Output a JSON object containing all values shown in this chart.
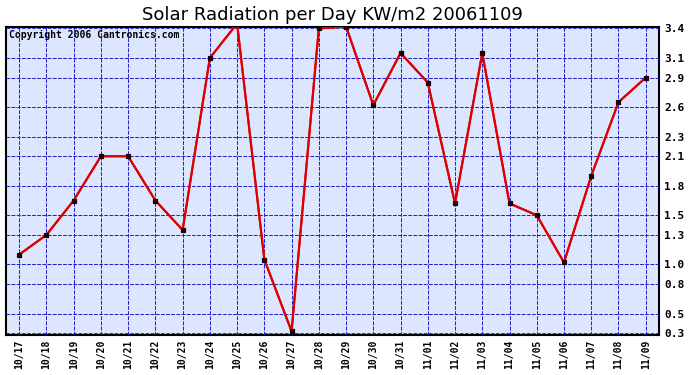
{
  "title": "Solar Radiation per Day KW/m2 20061109",
  "copyright": "Copyright 2006 Cantronics.com",
  "x_labels": [
    "10/17",
    "10/18",
    "10/19",
    "10/20",
    "10/21",
    "10/22",
    "10/23",
    "10/24",
    "10/25",
    "10/26",
    "10/27",
    "10/28",
    "10/29",
    "10/30",
    "10/31",
    "11/01",
    "11/02",
    "11/03",
    "11/04",
    "11/05",
    "11/06",
    "11/07",
    "11/08",
    "11/09"
  ],
  "y_values": [
    1.1,
    1.3,
    1.65,
    2.1,
    2.1,
    1.65,
    1.35,
    3.1,
    3.45,
    1.05,
    0.32,
    3.4,
    3.42,
    2.62,
    3.15,
    2.85,
    1.62,
    3.15,
    1.62,
    1.5,
    1.02,
    1.9,
    2.65,
    2.9
  ],
  "line_color": "#dd0000",
  "marker_color": "#cc0000",
  "fig_bg_color": "#ffffff",
  "plot_bg_color": "#dce6ff",
  "grid_color": "#2222cc",
  "title_fontsize": 13,
  "copyright_fontsize": 7,
  "ylim_min": 0.3,
  "ylim_max": 3.4,
  "yticks": [
    0.3,
    0.5,
    0.8,
    1.0,
    1.3,
    1.5,
    1.8,
    2.1,
    2.3,
    2.6,
    2.9,
    3.1,
    3.4
  ]
}
